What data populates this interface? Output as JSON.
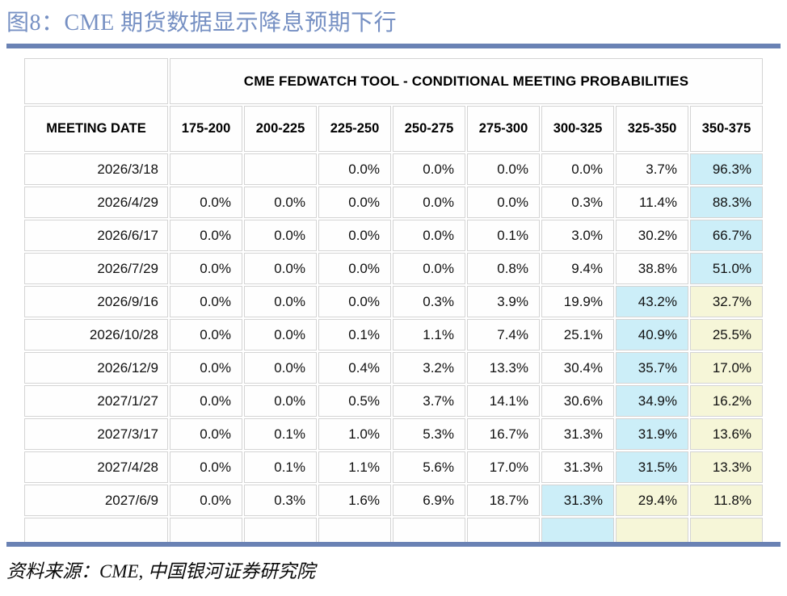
{
  "figure": {
    "title": "图8：CME 期货数据显示降息预期下行",
    "source": "资料来源：CME,  中国银河证券研究院"
  },
  "colors": {
    "title_blue": "#7690c3",
    "divider_blue": "#6a82b4",
    "highlight_blue": "#cceef8",
    "highlight_yellow": "#f6f6d8",
    "table_border_gray": "#d4d4d4"
  },
  "chart_data": {
    "type": "table",
    "title": "CME FEDWATCH TOOL - CONDITIONAL MEETING PROBABILITIES",
    "row_header": "MEETING DATE",
    "columns": [
      "175-200",
      "200-225",
      "225-250",
      "250-275",
      "275-300",
      "300-325",
      "325-350",
      "350-375"
    ],
    "rows": [
      {
        "date": "2026/3/18",
        "values": [
          "",
          "",
          "0.0%",
          "0.0%",
          "0.0%",
          "0.0%",
          "3.7%",
          "96.3%"
        ],
        "highlights": [
          null,
          null,
          null,
          null,
          null,
          null,
          null,
          "blue"
        ]
      },
      {
        "date": "2026/4/29",
        "values": [
          "0.0%",
          "0.0%",
          "0.0%",
          "0.0%",
          "0.0%",
          "0.3%",
          "11.4%",
          "88.3%"
        ],
        "highlights": [
          null,
          null,
          null,
          null,
          null,
          null,
          null,
          "blue"
        ]
      },
      {
        "date": "2026/6/17",
        "values": [
          "0.0%",
          "0.0%",
          "0.0%",
          "0.0%",
          "0.1%",
          "3.0%",
          "30.2%",
          "66.7%"
        ],
        "highlights": [
          null,
          null,
          null,
          null,
          null,
          null,
          null,
          "blue"
        ]
      },
      {
        "date": "2026/7/29",
        "values": [
          "0.0%",
          "0.0%",
          "0.0%",
          "0.0%",
          "0.8%",
          "9.4%",
          "38.8%",
          "51.0%"
        ],
        "highlights": [
          null,
          null,
          null,
          null,
          null,
          null,
          null,
          "blue"
        ]
      },
      {
        "date": "2026/9/16",
        "values": [
          "0.0%",
          "0.0%",
          "0.0%",
          "0.3%",
          "3.9%",
          "19.9%",
          "43.2%",
          "32.7%"
        ],
        "highlights": [
          null,
          null,
          null,
          null,
          null,
          null,
          "blue",
          "yellow"
        ]
      },
      {
        "date": "2026/10/28",
        "values": [
          "0.0%",
          "0.0%",
          "0.1%",
          "1.1%",
          "7.4%",
          "25.1%",
          "40.9%",
          "25.5%"
        ],
        "highlights": [
          null,
          null,
          null,
          null,
          null,
          null,
          "blue",
          "yellow"
        ]
      },
      {
        "date": "2026/12/9",
        "values": [
          "0.0%",
          "0.0%",
          "0.4%",
          "3.2%",
          "13.3%",
          "30.4%",
          "35.7%",
          "17.0%"
        ],
        "highlights": [
          null,
          null,
          null,
          null,
          null,
          null,
          "blue",
          "yellow"
        ]
      },
      {
        "date": "2027/1/27",
        "values": [
          "0.0%",
          "0.0%",
          "0.5%",
          "3.7%",
          "14.1%",
          "30.6%",
          "34.9%",
          "16.2%"
        ],
        "highlights": [
          null,
          null,
          null,
          null,
          null,
          null,
          "blue",
          "yellow"
        ]
      },
      {
        "date": "2027/3/17",
        "values": [
          "0.0%",
          "0.1%",
          "1.0%",
          "5.3%",
          "16.7%",
          "31.3%",
          "31.9%",
          "13.6%"
        ],
        "highlights": [
          null,
          null,
          null,
          null,
          null,
          null,
          "blue",
          "yellow"
        ]
      },
      {
        "date": "2027/4/28",
        "values": [
          "0.0%",
          "0.1%",
          "1.1%",
          "5.6%",
          "17.0%",
          "31.3%",
          "31.5%",
          "13.3%"
        ],
        "highlights": [
          null,
          null,
          null,
          null,
          null,
          null,
          "blue",
          "yellow"
        ]
      },
      {
        "date": "2027/6/9",
        "values": [
          "0.0%",
          "0.3%",
          "1.6%",
          "6.9%",
          "18.7%",
          "31.3%",
          "29.4%",
          "11.8%"
        ],
        "highlights": [
          null,
          null,
          null,
          null,
          null,
          "blue",
          "yellow",
          "yellow"
        ]
      },
      {
        "date": "",
        "values": [
          "",
          "",
          "",
          "",
          "",
          "",
          "",
          ""
        ],
        "highlights": [
          null,
          null,
          null,
          null,
          null,
          "blue",
          "yellow",
          "yellow"
        ]
      }
    ]
  }
}
